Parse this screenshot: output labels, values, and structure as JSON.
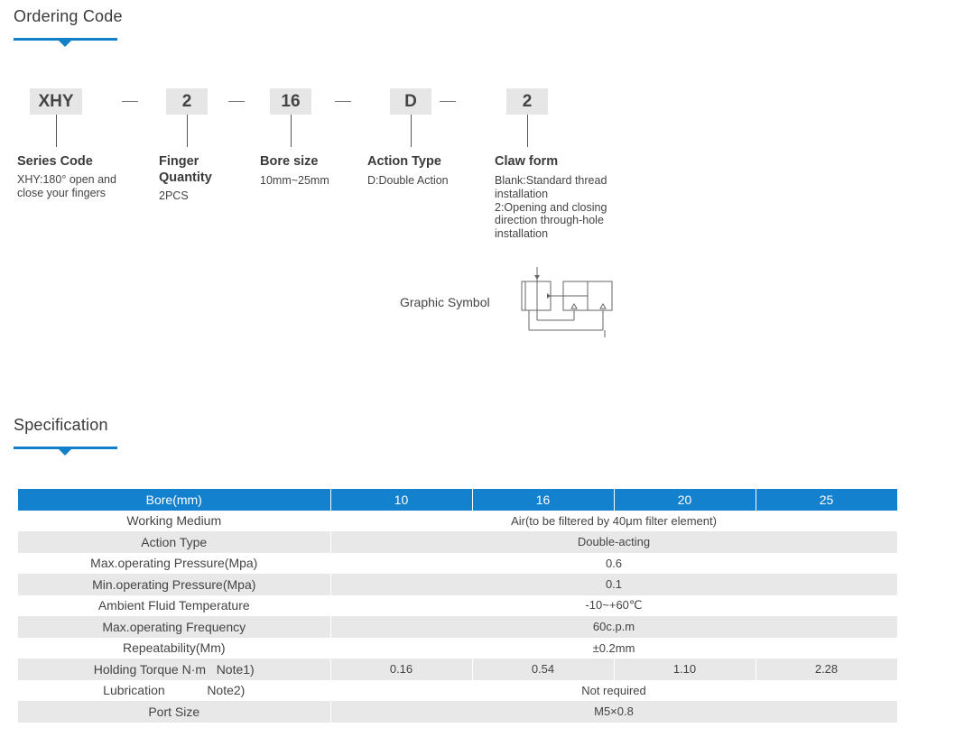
{
  "ordering": {
    "title": "Ordering Code",
    "codes": [
      "XHY",
      "2",
      "16",
      "D",
      "2"
    ],
    "columns": [
      {
        "head": "Series Code",
        "desc": "XHY:180° open and\nclose your fingers"
      },
      {
        "head": "Finger\nQuantity",
        "desc": "2PCS"
      },
      {
        "head": "Bore size",
        "desc": "10mm~25mm"
      },
      {
        "head": "Action Type",
        "desc": "D:Double Action"
      },
      {
        "head": "Claw form",
        "desc": "Blank:Standard thread\ninstallation\n2:Opening and closing\ndirection through-hole\ninstallation"
      }
    ],
    "graphic_symbol_label": "Graphic Symbol"
  },
  "specification": {
    "title": "Specification",
    "header": [
      "Bore(mm)",
      "10",
      "16",
      "20",
      "25"
    ],
    "rows": [
      {
        "label": "Working Medium",
        "value": "Air(to be filtered by 40μm filter element)"
      },
      {
        "label": "Action Type",
        "value": "Double-acting"
      },
      {
        "label": "Max.operating Pressure(Mpa)",
        "value": "0.6"
      },
      {
        "label": "Min.operating Pressure(Mpa)",
        "value": "0.1"
      },
      {
        "label": "Ambient Fluid Temperature",
        "value": "-10~+60℃"
      },
      {
        "label": "Max.operating Frequency",
        "value": "60c.p.m"
      },
      {
        "label": "Repeatability(Mm)",
        "value": "±0.2mm"
      },
      {
        "label": "Holding Torque N·m   Note1)",
        "values": [
          "0.16",
          "0.54",
          "1.10",
          "2.28"
        ]
      },
      {
        "label": "Lubrication            Note2)",
        "value": "Not required"
      },
      {
        "label": "Port Size",
        "value": "M5×0.8"
      }
    ]
  }
}
